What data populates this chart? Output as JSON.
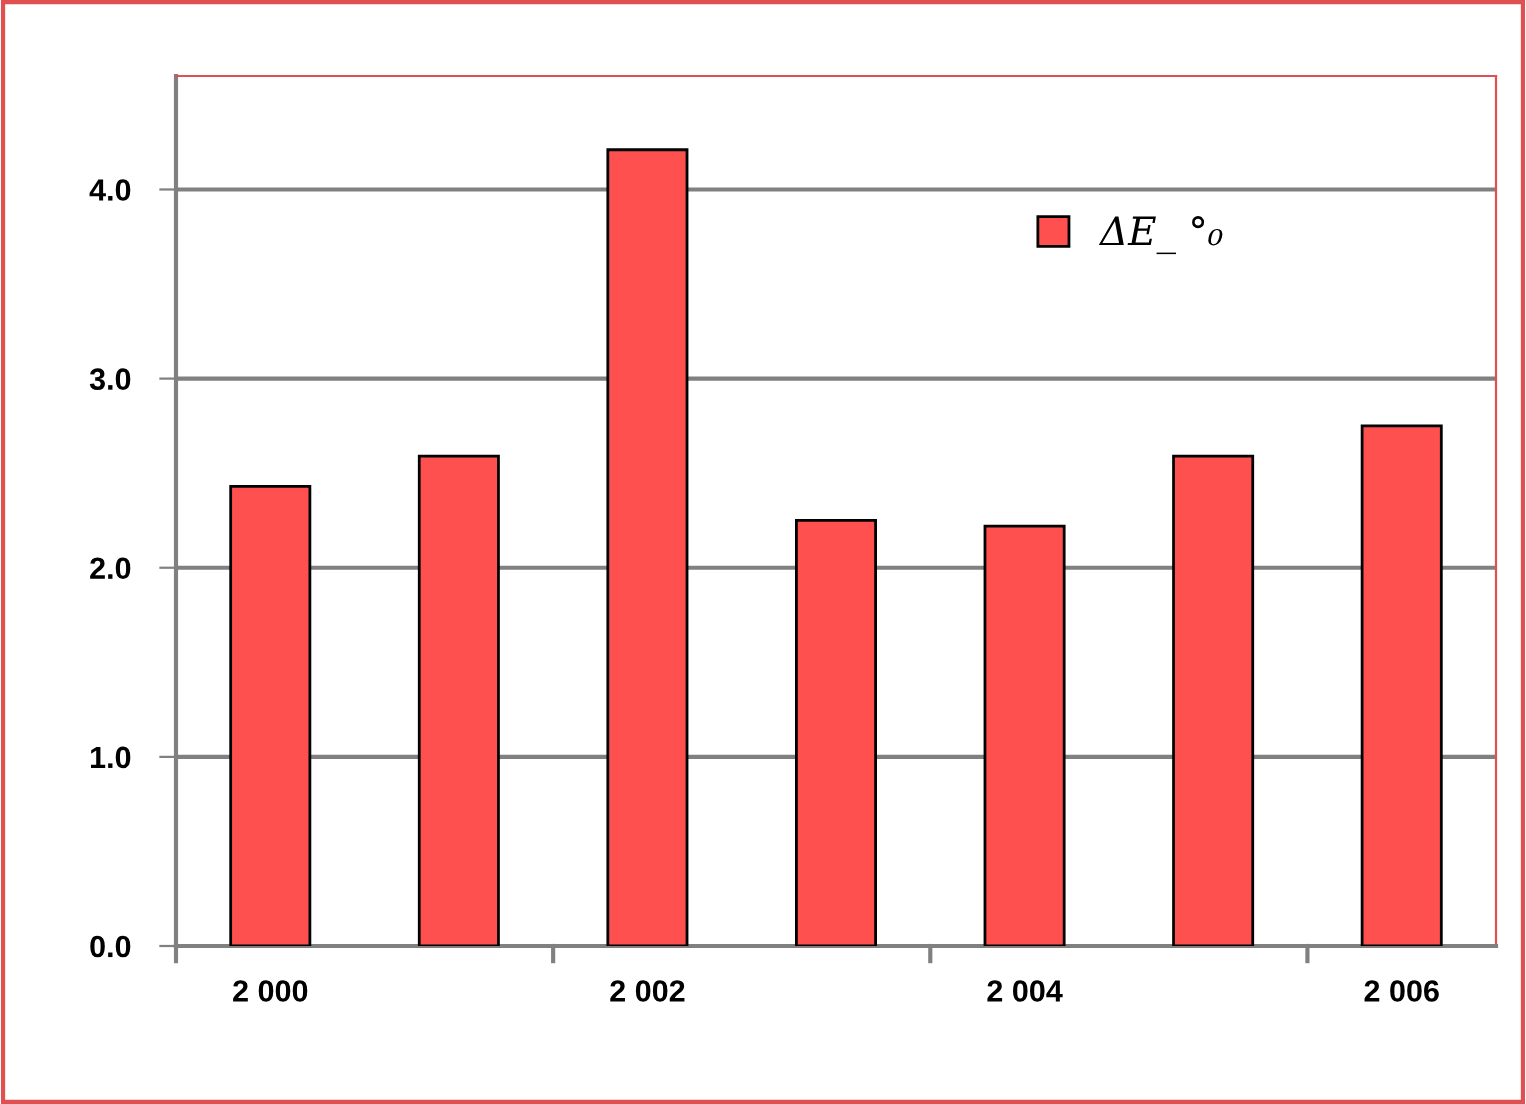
{
  "chart_data": {
    "type": "bar",
    "categories": [
      "2 000",
      null,
      "2 002",
      null,
      "2 004",
      null,
      "2 006"
    ],
    "series": [
      {
        "name": "ΔE_ °₀",
        "color": "#ff5050",
        "values": [
          2.43,
          2.59,
          4.21,
          2.25,
          2.22,
          2.59,
          2.75
        ]
      }
    ],
    "ylim": [
      0,
      4.6
    ],
    "yticks": [
      {
        "value": 0,
        "label": "0.0"
      },
      {
        "value": 1,
        "label": "1.0"
      },
      {
        "value": 2,
        "label": "2.0"
      },
      {
        "value": 3,
        "label": "3.0"
      },
      {
        "value": 4,
        "label": "4.0"
      }
    ],
    "grid": "y",
    "legend": "top right"
  }
}
